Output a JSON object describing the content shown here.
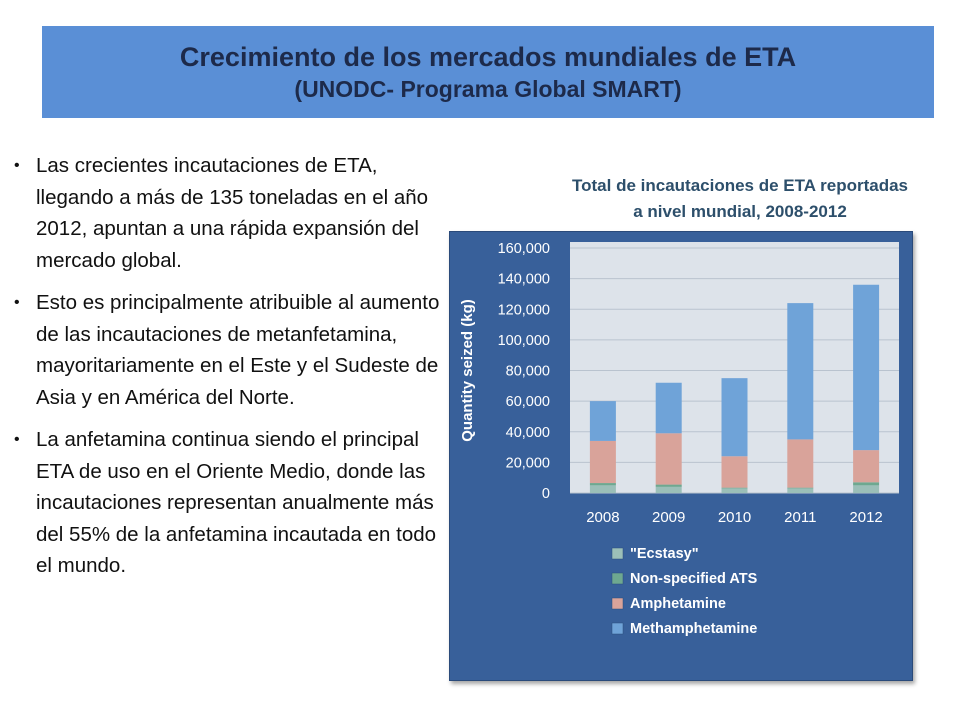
{
  "title": {
    "main": "Crecimiento de los mercados mundiales de ETA",
    "sub": "(UNODC-  Programa Global SMART)"
  },
  "bullets": [
    "Las crecientes incautaciones de ETA, llegando a más de 135 toneladas en el año 2012, apuntan a una rápida expansión del mercado global.",
    "Esto es principalmente atribuible al aumento de las incautaciones de metanfetamina, mayoritariamente en el Este y el Sudeste de Asia y en América del Norte.",
    "La anfetamina continua siendo el principal ETA de uso en el Oriente Medio, donde las incautaciones representan anualmente más del 55% de la anfetamina incautada en todo el mundo."
  ],
  "chart_title_lines": [
    "Total de incautaciones de ETA reportadas",
    "a nivel mundial, 2008-2012"
  ],
  "chart_data": {
    "type": "bar",
    "stacked": true,
    "title": "Total de incautaciones de ETA reportadas a nivel mundial, 2008-2012",
    "ylabel": "Quantity seized (kg)",
    "xlabel": "",
    "categories": [
      "2008",
      "2009",
      "2010",
      "2011",
      "2012"
    ],
    "ylim": [
      0,
      160000
    ],
    "yticks": [
      0,
      20000,
      40000,
      60000,
      80000,
      100000,
      120000,
      140000,
      160000
    ],
    "ytick_labels": [
      "0",
      "20,000",
      "40,000",
      "60,000",
      "80,000",
      "100,000",
      "120,000",
      "140,000",
      "160,000"
    ],
    "grid": true,
    "legend": "bottom",
    "series": [
      {
        "name": "\"Ecstasy\"",
        "color": "#9bbfb8",
        "values": [
          5000,
          4000,
          3000,
          3000,
          5000
        ]
      },
      {
        "name": "Non-specified ATS",
        "color": "#6ea890",
        "values": [
          1500,
          1500,
          500,
          500,
          2000
        ]
      },
      {
        "name": "Amphetamine",
        "color": "#d9a39a",
        "values": [
          27500,
          33500,
          20500,
          31500,
          21000
        ]
      },
      {
        "name": "Methamphetamine",
        "color": "#6fa3d8",
        "values": [
          26000,
          33000,
          51000,
          89000,
          108000
        ]
      }
    ]
  },
  "colors": {
    "banner": "#5a8fd6",
    "chart_panel": "#38609a",
    "plot_area": "#dde3ea"
  }
}
